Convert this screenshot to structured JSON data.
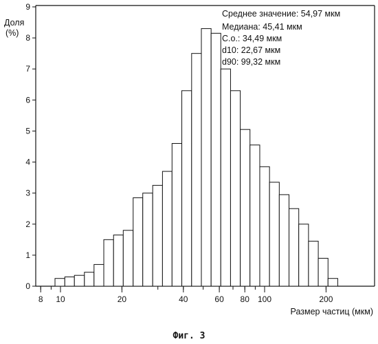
{
  "chart_data": {
    "type": "bar",
    "xscale": "log",
    "ylabel_line1": "Доля",
    "ylabel_line2": "(%)",
    "xlabel": "Размер частиц (мкм)",
    "ylim": [
      0,
      9
    ],
    "yticks": [
      0,
      1,
      2,
      3,
      4,
      5,
      6,
      7,
      8,
      9
    ],
    "xlim": [
      8,
      230
    ],
    "xticks": [
      8,
      10,
      20,
      40,
      60,
      80,
      100,
      200
    ],
    "stats": [
      "Среднее значение: 54,97 мкм",
      "Медиана: 45,41 мкм",
      "С.о.: 34,49 мкм",
      "d10: 22,67 мкм",
      "d90: 99,32 мкм"
    ],
    "bins": [
      {
        "from": 8.4,
        "to": 9.4,
        "value": 0.0
      },
      {
        "from": 9.4,
        "to": 10.5,
        "value": 0.25
      },
      {
        "from": 10.5,
        "to": 11.7,
        "value": 0.3
      },
      {
        "from": 11.7,
        "to": 13.1,
        "value": 0.35
      },
      {
        "from": 13.1,
        "to": 14.6,
        "value": 0.45
      },
      {
        "from": 14.6,
        "to": 16.3,
        "value": 0.7
      },
      {
        "from": 16.3,
        "to": 18.2,
        "value": 1.5
      },
      {
        "from": 18.2,
        "to": 20.3,
        "value": 1.65
      },
      {
        "from": 20.3,
        "to": 22.7,
        "value": 1.8
      },
      {
        "from": 22.7,
        "to": 25.3,
        "value": 2.85
      },
      {
        "from": 25.3,
        "to": 28.3,
        "value": 3.0
      },
      {
        "from": 28.3,
        "to": 31.6,
        "value": 3.25
      },
      {
        "from": 31.6,
        "to": 35.2,
        "value": 3.7
      },
      {
        "from": 35.2,
        "to": 39.3,
        "value": 4.6
      },
      {
        "from": 39.3,
        "to": 43.9,
        "value": 6.3
      },
      {
        "from": 43.9,
        "to": 49.0,
        "value": 7.5
      },
      {
        "from": 49.0,
        "to": 54.7,
        "value": 8.3
      },
      {
        "from": 54.7,
        "to": 61.0,
        "value": 8.15
      },
      {
        "from": 61.0,
        "to": 68.1,
        "value": 7.0
      },
      {
        "from": 68.1,
        "to": 76.0,
        "value": 6.3
      },
      {
        "from": 76.0,
        "to": 84.8,
        "value": 5.05
      },
      {
        "from": 84.8,
        "to": 94.7,
        "value": 4.55
      },
      {
        "from": 94.7,
        "to": 105.7,
        "value": 3.85
      },
      {
        "from": 105.7,
        "to": 118.0,
        "value": 3.35
      },
      {
        "from": 118.0,
        "to": 131.7,
        "value": 2.95
      },
      {
        "from": 131.7,
        "to": 147.0,
        "value": 2.5
      },
      {
        "from": 147.0,
        "to": 164.1,
        "value": 2.0
      },
      {
        "from": 164.1,
        "to": 183.2,
        "value": 1.45
      },
      {
        "from": 183.2,
        "to": 204.5,
        "value": 0.9
      },
      {
        "from": 204.5,
        "to": 228.2,
        "value": 0.25
      }
    ]
  },
  "caption": "Фиг. 3"
}
